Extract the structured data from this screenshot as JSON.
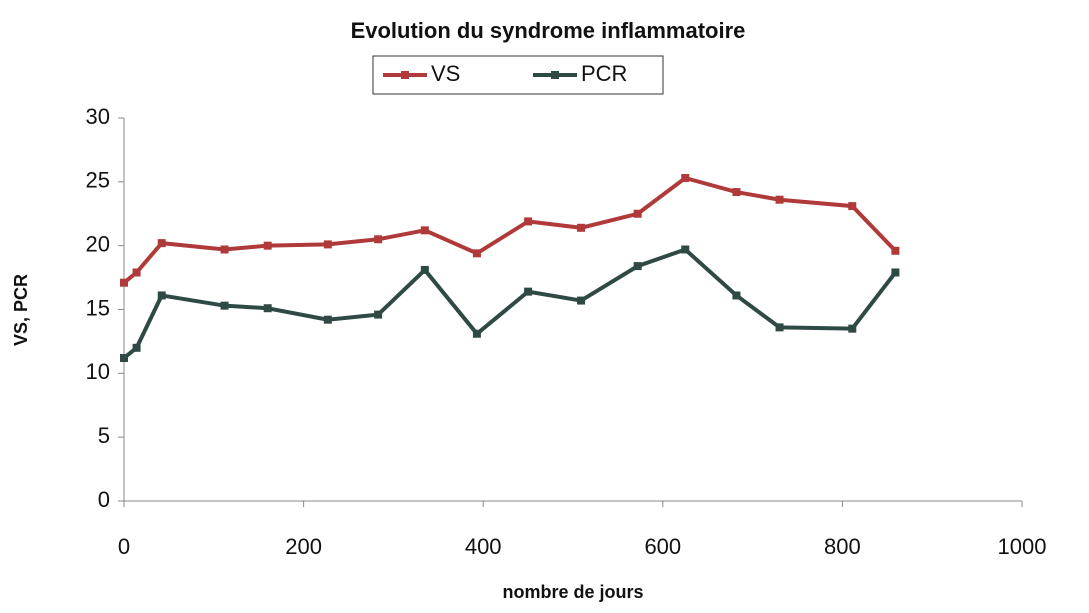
{
  "chart_data": {
    "type": "line",
    "title": "Evolution du syndrome inflammatoire",
    "xlabel": "nombre de jours",
    "ylabel": "VS, PCR",
    "x": [
      0,
      14,
      42,
      112,
      160,
      227,
      283,
      335,
      393,
      450,
      509,
      572,
      625,
      682,
      730,
      811,
      859
    ],
    "series": [
      {
        "name": "VS",
        "color": "#b03a3a",
        "values": [
          17.1,
          17.9,
          20.2,
          19.7,
          20.0,
          20.1,
          20.5,
          21.2,
          19.4,
          21.9,
          21.4,
          22.5,
          25.3,
          24.2,
          23.6,
          23.1,
          19.6
        ]
      },
      {
        "name": "PCR",
        "color": "#2f4a45",
        "values": [
          11.2,
          12.0,
          16.1,
          15.3,
          15.1,
          14.2,
          14.6,
          18.1,
          13.1,
          16.4,
          15.7,
          18.4,
          19.7,
          16.1,
          13.6,
          13.5,
          17.9
        ]
      }
    ],
    "xlim": [
      0,
      1000
    ],
    "xticks": [
      0,
      200,
      400,
      600,
      800,
      1000
    ],
    "ylim": [
      0,
      30
    ],
    "yticks": [
      0,
      5,
      10,
      15,
      20,
      25,
      30
    ]
  }
}
